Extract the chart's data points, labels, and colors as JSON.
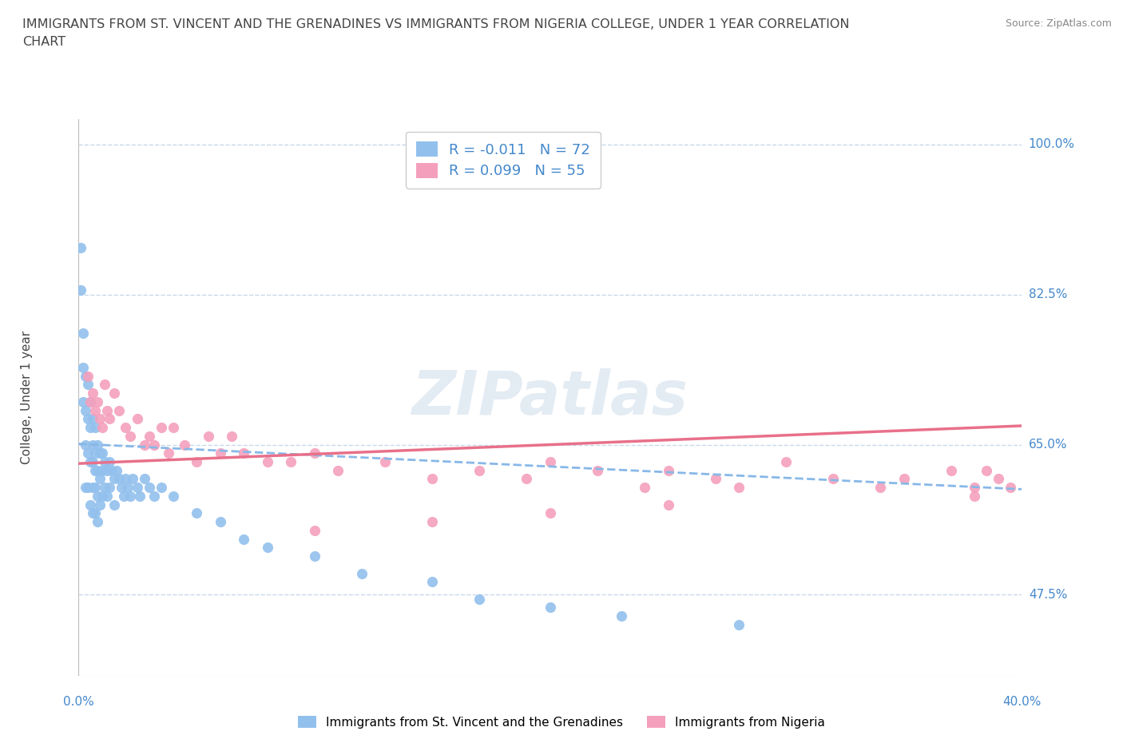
{
  "title": "IMMIGRANTS FROM ST. VINCENT AND THE GRENADINES VS IMMIGRANTS FROM NIGERIA COLLEGE, UNDER 1 YEAR CORRELATION\nCHART",
  "source": "Source: ZipAtlas.com",
  "xlim": [
    0.0,
    0.4
  ],
  "ylim": [
    0.38,
    1.03
  ],
  "watermark": "ZIPatlas",
  "legend_label1": "Immigrants from St. Vincent and the Grenadines",
  "legend_label2": "Immigrants from Nigeria",
  "R1": -0.011,
  "N1": 72,
  "R2": 0.099,
  "N2": 55,
  "color_blue": "#92C0ED",
  "color_pink": "#F4A0BC",
  "trend_color_blue": "#88B8E8",
  "trend_color_pink": "#E8708A",
  "hline_y": [
    1.0,
    0.825,
    0.65,
    0.475
  ],
  "hline_color": "#C8D8E8",
  "background_color": "#FFFFFF",
  "title_color": "#444444",
  "tick_label_color": "#4488CC",
  "axis_color": "#BBBBBB",
  "scatter_blue_x": [
    0.001,
    0.001,
    0.002,
    0.002,
    0.002,
    0.003,
    0.003,
    0.003,
    0.003,
    0.004,
    0.004,
    0.004,
    0.004,
    0.005,
    0.005,
    0.005,
    0.005,
    0.006,
    0.006,
    0.006,
    0.006,
    0.006,
    0.007,
    0.007,
    0.007,
    0.007,
    0.007,
    0.008,
    0.008,
    0.008,
    0.008,
    0.009,
    0.009,
    0.009,
    0.01,
    0.01,
    0.01,
    0.011,
    0.011,
    0.012,
    0.012,
    0.013,
    0.013,
    0.014,
    0.015,
    0.015,
    0.016,
    0.017,
    0.018,
    0.019,
    0.02,
    0.021,
    0.022,
    0.023,
    0.025,
    0.026,
    0.028,
    0.03,
    0.032,
    0.035,
    0.04,
    0.05,
    0.06,
    0.07,
    0.08,
    0.1,
    0.12,
    0.15,
    0.17,
    0.2,
    0.23,
    0.28
  ],
  "scatter_blue_y": [
    0.88,
    0.83,
    0.78,
    0.74,
    0.7,
    0.73,
    0.69,
    0.65,
    0.6,
    0.72,
    0.68,
    0.64,
    0.6,
    0.7,
    0.67,
    0.63,
    0.58,
    0.68,
    0.65,
    0.63,
    0.6,
    0.57,
    0.67,
    0.64,
    0.62,
    0.6,
    0.57,
    0.65,
    0.62,
    0.59,
    0.56,
    0.64,
    0.61,
    0.58,
    0.64,
    0.62,
    0.59,
    0.63,
    0.6,
    0.62,
    0.59,
    0.63,
    0.6,
    0.62,
    0.61,
    0.58,
    0.62,
    0.61,
    0.6,
    0.59,
    0.61,
    0.6,
    0.59,
    0.61,
    0.6,
    0.59,
    0.61,
    0.6,
    0.59,
    0.6,
    0.59,
    0.57,
    0.56,
    0.54,
    0.53,
    0.52,
    0.5,
    0.49,
    0.47,
    0.46,
    0.45,
    0.44
  ],
  "scatter_pink_x": [
    0.004,
    0.005,
    0.006,
    0.007,
    0.008,
    0.009,
    0.01,
    0.011,
    0.012,
    0.013,
    0.015,
    0.017,
    0.02,
    0.022,
    0.025,
    0.028,
    0.03,
    0.032,
    0.035,
    0.038,
    0.04,
    0.045,
    0.05,
    0.055,
    0.06,
    0.065,
    0.07,
    0.08,
    0.09,
    0.1,
    0.11,
    0.13,
    0.15,
    0.17,
    0.19,
    0.2,
    0.22,
    0.24,
    0.25,
    0.27,
    0.28,
    0.3,
    0.32,
    0.34,
    0.35,
    0.37,
    0.38,
    0.385,
    0.39,
    0.395,
    0.38,
    0.25,
    0.2,
    0.15,
    0.1
  ],
  "scatter_pink_y": [
    0.73,
    0.7,
    0.71,
    0.69,
    0.7,
    0.68,
    0.67,
    0.72,
    0.69,
    0.68,
    0.71,
    0.69,
    0.67,
    0.66,
    0.68,
    0.65,
    0.66,
    0.65,
    0.67,
    0.64,
    0.67,
    0.65,
    0.63,
    0.66,
    0.64,
    0.66,
    0.64,
    0.63,
    0.63,
    0.64,
    0.62,
    0.63,
    0.61,
    0.62,
    0.61,
    0.63,
    0.62,
    0.6,
    0.62,
    0.61,
    0.6,
    0.63,
    0.61,
    0.6,
    0.61,
    0.62,
    0.6,
    0.62,
    0.61,
    0.6,
    0.59,
    0.58,
    0.57,
    0.56,
    0.55
  ],
  "right_tick_labels": [
    [
      1.0,
      "100.0%"
    ],
    [
      0.825,
      "82.5%"
    ],
    [
      0.65,
      "65.0%"
    ],
    [
      0.475,
      "47.5%"
    ]
  ],
  "bottom_x_labels": [
    [
      0.0,
      "0.0%"
    ],
    [
      0.4,
      "40.0%"
    ]
  ]
}
